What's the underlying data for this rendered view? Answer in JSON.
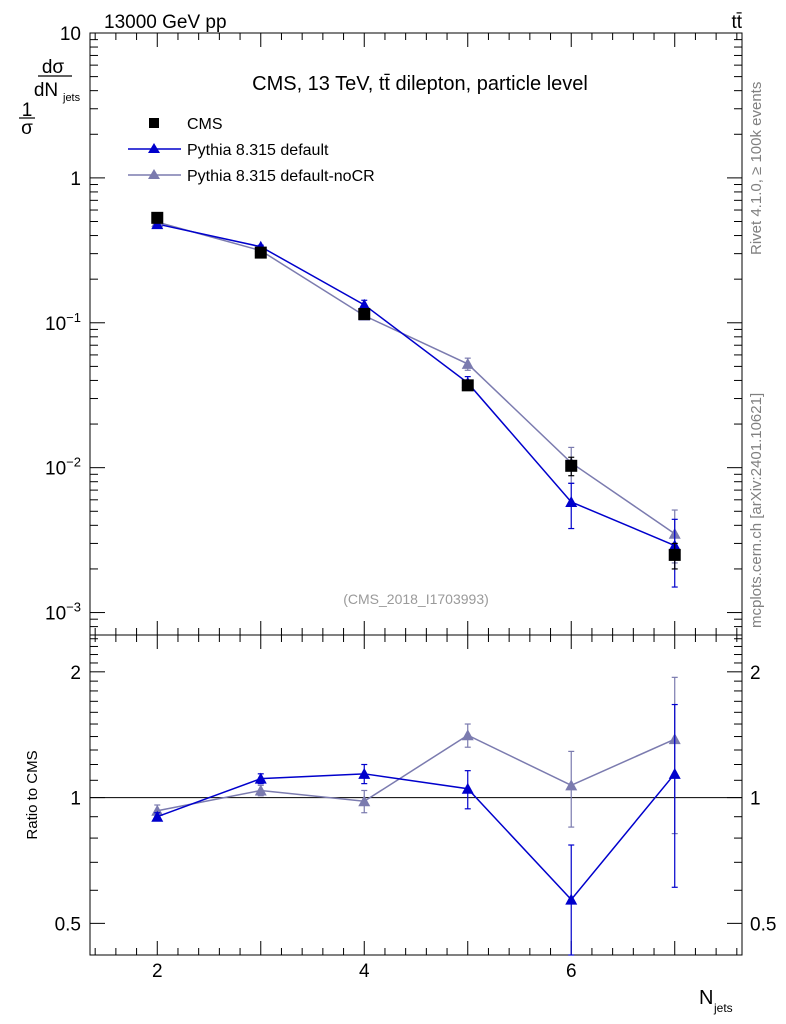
{
  "header": {
    "beam": "13000 GeV pp",
    "process": "tt̄"
  },
  "sidebar": {
    "rivet": "Rivet 4.1.0, ≥ 100k events",
    "source": "mcplots.cern.ch [arXiv:2401.10621]"
  },
  "chart_data": [
    {
      "type": "line",
      "title": "CMS, 13 TeV, tt̄ dilepton, particle level",
      "watermark": "(CMS_2018_I1703993)",
      "ylabel": "1/σ dσ/dN_jets",
      "yscale": "log",
      "ylim": [
        0.0007,
        10
      ],
      "xlim": [
        1.35,
        7.65
      ],
      "x_ticks": [
        2,
        4,
        6
      ],
      "y_tick_labels": [
        "10",
        "1",
        "10^-1",
        "10^-2",
        "10^-3"
      ],
      "legend_position": "top-left",
      "x": [
        2,
        3,
        4,
        5,
        6,
        7
      ],
      "series": [
        {
          "name": "CMS",
          "marker": "square",
          "color": "#000000",
          "values": [
            0.53,
            0.305,
            0.115,
            0.037,
            0.0103,
            0.0025
          ],
          "err_low": [
            0.02,
            0.01,
            0.006,
            0.0025,
            0.0015,
            0.0005
          ],
          "err_high": [
            0.02,
            0.01,
            0.006,
            0.0025,
            0.0015,
            0.0005
          ]
        },
        {
          "name": "Pythia 8.315 default",
          "marker": "triangle",
          "color": "#0000cc",
          "values": [
            0.48,
            0.335,
            0.133,
            0.0385,
            0.0058,
            0.0029
          ],
          "err_low": [
            0.01,
            0.008,
            0.01,
            0.004,
            0.002,
            0.0014
          ],
          "err_high": [
            0.01,
            0.008,
            0.01,
            0.004,
            0.002,
            0.0015
          ]
        },
        {
          "name": "Pythia 8.315 default-noCR",
          "marker": "triangle",
          "color": "#7b7baf",
          "values": [
            0.495,
            0.315,
            0.112,
            0.052,
            0.0108,
            0.0035
          ],
          "err_low": [
            0.01,
            0.008,
            0.006,
            0.005,
            0.003,
            0.0013
          ],
          "err_high": [
            0.01,
            0.008,
            0.006,
            0.005,
            0.003,
            0.0016
          ]
        }
      ]
    },
    {
      "type": "line",
      "ylabel": "Ratio to CMS",
      "xlabel": "N_jets",
      "yscale": "log",
      "ylim": [
        0.42,
        2.45
      ],
      "xlim": [
        1.35,
        7.65
      ],
      "x_ticks": [
        2,
        4,
        6
      ],
      "y_ticks": [
        0.5,
        1,
        2
      ],
      "reference_line": 1,
      "x": [
        2,
        3,
        4,
        5,
        6,
        7
      ],
      "series": [
        {
          "name": "Pythia 8.315 default",
          "color": "#0000cc",
          "values": [
            0.9,
            1.11,
            1.14,
            1.05,
            0.57,
            1.14
          ],
          "err_low": [
            0.02,
            0.03,
            0.06,
            0.11,
            0.2,
            0.53
          ],
          "err_high": [
            0.02,
            0.03,
            0.06,
            0.11,
            0.2,
            0.53
          ]
        },
        {
          "name": "Pythia 8.315 default-noCR",
          "color": "#7b7baf",
          "values": [
            0.93,
            1.04,
            0.98,
            1.41,
            1.07,
            1.38
          ],
          "err_low": [
            0.03,
            0.03,
            0.06,
            0.09,
            0.22,
            0.56
          ],
          "err_high": [
            0.03,
            0.03,
            0.06,
            0.09,
            0.22,
            0.56
          ]
        }
      ]
    }
  ]
}
